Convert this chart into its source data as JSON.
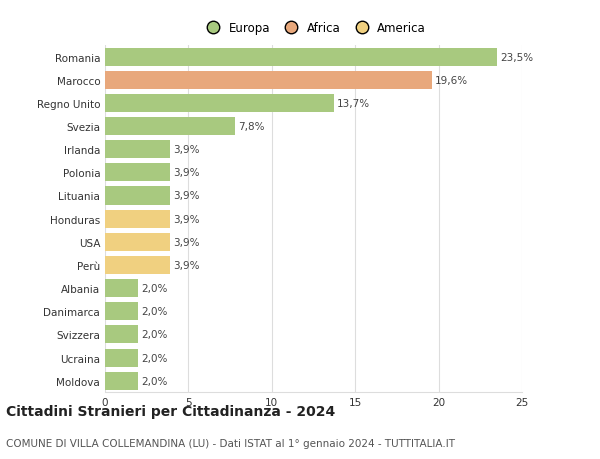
{
  "categories": [
    "Romania",
    "Marocco",
    "Regno Unito",
    "Svezia",
    "Irlanda",
    "Polonia",
    "Lituania",
    "Honduras",
    "USA",
    "Perù",
    "Albania",
    "Danimarca",
    "Svizzera",
    "Ucraina",
    "Moldova"
  ],
  "values": [
    23.5,
    19.6,
    13.7,
    7.8,
    3.9,
    3.9,
    3.9,
    3.9,
    3.9,
    3.9,
    2.0,
    2.0,
    2.0,
    2.0,
    2.0
  ],
  "labels": [
    "23,5%",
    "19,6%",
    "13,7%",
    "7,8%",
    "3,9%",
    "3,9%",
    "3,9%",
    "3,9%",
    "3,9%",
    "3,9%",
    "2,0%",
    "2,0%",
    "2,0%",
    "2,0%",
    "2,0%"
  ],
  "continents": [
    "Europa",
    "Africa",
    "Europa",
    "Europa",
    "Europa",
    "Europa",
    "Europa",
    "America",
    "America",
    "America",
    "Europa",
    "Europa",
    "Europa",
    "Europa",
    "Europa"
  ],
  "colors": {
    "Europa": "#a8c97f",
    "Africa": "#e8a87c",
    "America": "#f0d080"
  },
  "title": "Cittadini Stranieri per Cittadinanza - 2024",
  "subtitle": "COMUNE DI VILLA COLLEMANDINA (LU) - Dati ISTAT al 1° gennaio 2024 - TUTTITALIA.IT",
  "xlim": [
    0,
    25
  ],
  "xticks": [
    0,
    5,
    10,
    15,
    20,
    25
  ],
  "background_color": "#ffffff",
  "grid_color": "#dddddd",
  "bar_height": 0.78,
  "title_fontsize": 10,
  "subtitle_fontsize": 7.5,
  "label_fontsize": 7.5,
  "tick_fontsize": 7.5,
  "legend_fontsize": 8.5
}
